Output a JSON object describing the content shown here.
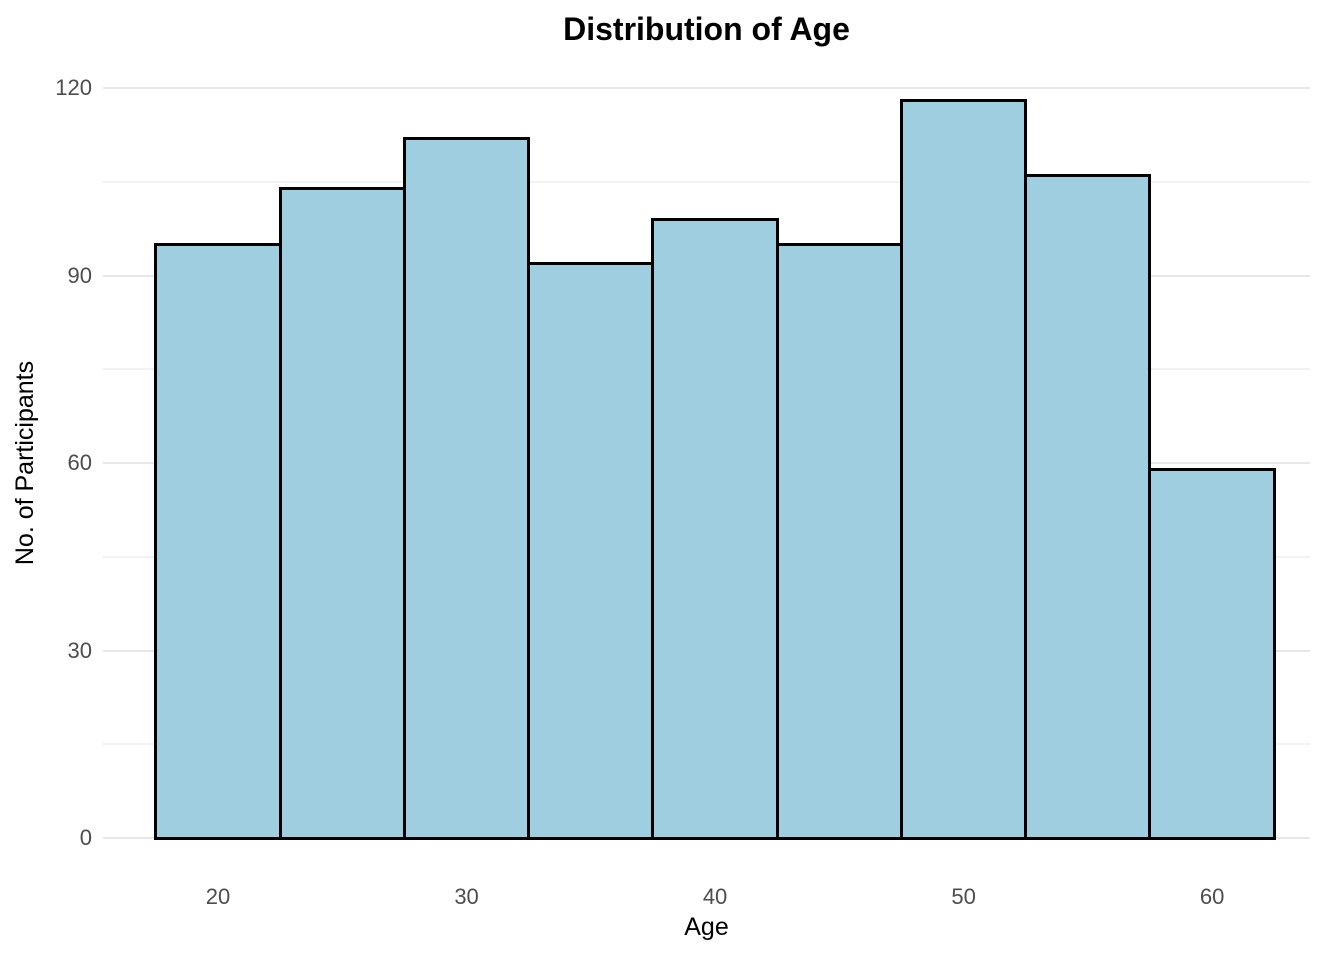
{
  "chart_data": {
    "type": "histogram",
    "title": "Distribution of Age",
    "xlabel": "Age",
    "ylabel": "No. of Participants",
    "bin_edges": [
      17.5,
      22.5,
      27.5,
      32.5,
      37.5,
      42.5,
      47.5,
      52.5,
      57.5,
      62.5
    ],
    "bin_centers": [
      20,
      25,
      30,
      35,
      40,
      45,
      50,
      55,
      60
    ],
    "counts": [
      95,
      104,
      112,
      92,
      99,
      95,
      118,
      106,
      59
    ],
    "x_ticks": [
      20,
      30,
      40,
      50,
      60
    ],
    "y_ticks": [
      0,
      30,
      60,
      90,
      120
    ],
    "y_minor_gridlines": [
      15,
      45,
      75,
      105
    ],
    "x_domain": [
      15.37,
      63.94
    ],
    "y_domain": [
      0,
      120
    ],
    "grid": "horizontal-only",
    "legend": "none",
    "colors": {
      "bar_fill": "#9ECEE0",
      "bar_border": "#000000",
      "grid_major": "#E7E7E7",
      "grid_minor": "#F2F2F2",
      "tick_label": "#4D4D4D",
      "title_text": "#000000",
      "background": "#FFFFFF"
    }
  }
}
